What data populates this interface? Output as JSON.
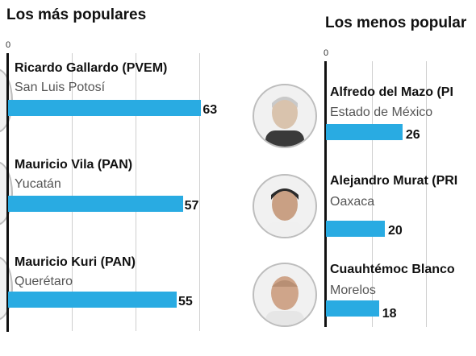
{
  "chart_data": [
    {
      "type": "bar",
      "orientation": "horizontal",
      "title": "Los más populares",
      "axis_zero_label": "0",
      "items": [
        {
          "name": "Ricardo Gallardo (PVEM)",
          "state": "San Luis Potosí",
          "value": 63,
          "value_label": "63"
        },
        {
          "name": "Mauricio Vila (PAN)",
          "state": "Yucatán",
          "value": 57,
          "value_label": "57"
        },
        {
          "name": "Mauricio Kuri (PAN)",
          "state": "Querétaro",
          "value": 55,
          "value_label": "55"
        }
      ]
    },
    {
      "type": "bar",
      "orientation": "horizontal",
      "title": "Los menos popular",
      "axis_zero_label": "0",
      "items": [
        {
          "name": "Alfredo del Mazo (PI",
          "state": "Estado de México",
          "value": 26,
          "value_label": "26"
        },
        {
          "name": "Alejandro Murat (PRI",
          "state": "Oaxaca",
          "value": 20,
          "value_label": "20"
        },
        {
          "name": "Cuauhtémoc Blanco",
          "state": "Morelos",
          "value": 18,
          "value_label": "18"
        }
      ]
    }
  ],
  "colors": {
    "bar": "#29abe2",
    "axis": "#111111",
    "grid": "#cfcfcf"
  },
  "icons": [
    "person-photo-icon"
  ]
}
